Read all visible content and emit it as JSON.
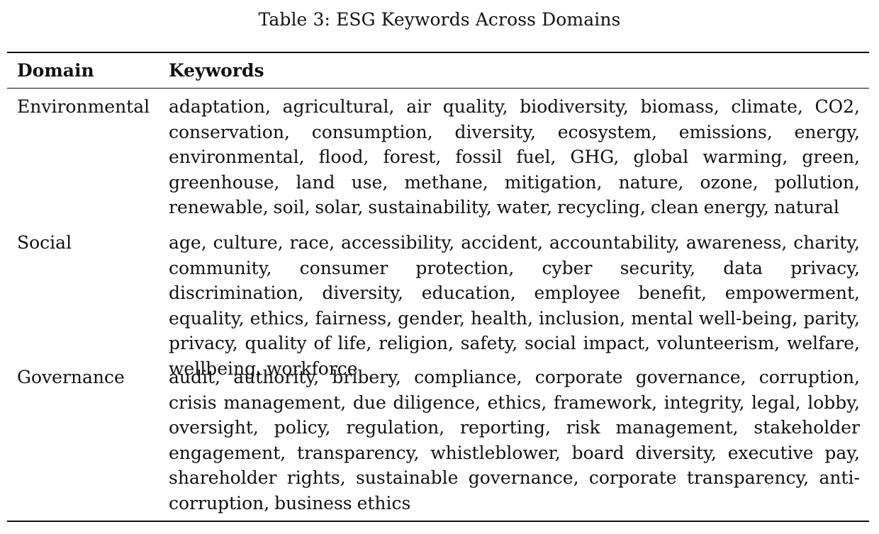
{
  "caption": "Table 3: ESG Keywords Across Domains",
  "table": {
    "headers": {
      "domain": "Domain",
      "keywords": "Keywords"
    },
    "rows": [
      {
        "domain": "Environmental",
        "keywords": "adaptation, agricultural, air quality, biodiversity, biomass, climate, CO2, conservation, consumption, diversity, ecosystem, emissions, energy, environmental, flood, forest, fossil fuel, GHG, global warming, green, greenhouse, land use, methane, mitigation, nature, ozone, pollution, renewable, soil, solar, sustainability, water, recycling, clean energy, natural"
      },
      {
        "domain": "Social",
        "keywords": "age, culture, race, accessibility, accident, accountability, awareness, charity, community, consumer protection, cyber security, data privacy, discrimination, diversity, education, employee benefit, empowerment, equality, ethics, fairness, gender, health, inclusion, mental well-being, parity, privacy, quality of life, religion, safety, social impact, volunteerism, welfare, wellbeing, workforce"
      },
      {
        "domain": "Governance",
        "keywords": "audit, authority, bribery, compliance, corporate governance, corruption, crisis management, due diligence, ethics, framework, integrity, legal, lobby, oversight, policy, regulation, reporting, risk management, stakeholder engagement, transparency, whistleblower, board diversity, executive pay, shareholder rights, sustainable governance, corporate transparency, anti-corruption, business ethics"
      }
    ]
  }
}
